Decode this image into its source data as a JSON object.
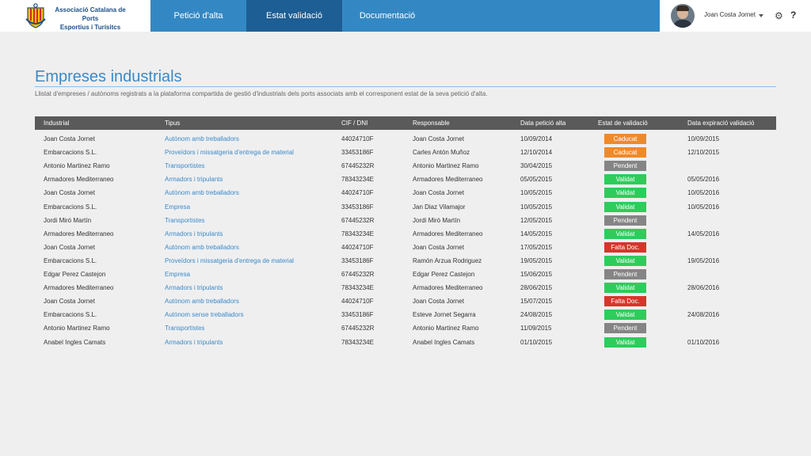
{
  "logo": {
    "line1": "Associació Catalana de Ports",
    "line2": "Esportius i Turísitcs"
  },
  "nav": {
    "tabs": [
      {
        "label": "Petició d'alta"
      },
      {
        "label": "Estat validació"
      },
      {
        "label": "Documentació"
      }
    ]
  },
  "user": {
    "name": "Joan Costa Jornet",
    "settings_icon": "gear-icon",
    "help_label": "?"
  },
  "page": {
    "title": "Empreses industrials",
    "subtitle": "Llistat d'empreses / autònoms registrats a la plataforma compartida de gestió d'industrials dels ports associats amb el corresponent estat de la seva petició d'alta."
  },
  "table": {
    "headers": {
      "industrial": "Industrial",
      "tipus": "Tipus",
      "cif": "CIF / DNI",
      "responsable": "Responsable",
      "data_peticio": "Data petició alta",
      "estat": "Estat de validació",
      "data_exp": "Data expiració validació"
    },
    "status_colors": {
      "Caducat": "#ee8a2b",
      "Pendent": "#858585",
      "Validat": "#2ecc5b",
      "Falta Doc.": "#d9342b"
    },
    "rows": [
      {
        "industrial": "Joan Costa Jornet",
        "tipus": "Autònom amb treballadors",
        "cif": "44024710F",
        "responsable": "Joan Costa Jornet",
        "data_peticio": "10/09/2014",
        "estat": "Caducat",
        "data_exp": "10/09/2015"
      },
      {
        "industrial": "Embarcacions S.L.",
        "tipus": "Proveïdors i missatgeria d'entrega de material",
        "cif": "33453186F",
        "responsable": "Carles Antón Muñoz",
        "data_peticio": "12/10/2014",
        "estat": "Caducat",
        "data_exp": "12/10/2015"
      },
      {
        "industrial": "Antonio Martinez Ramo",
        "tipus": "Transportistes",
        "cif": "67445232R",
        "responsable": "Antonio Martinez Ramo",
        "data_peticio": "30/04/2015",
        "estat": "Pendent",
        "data_exp": ""
      },
      {
        "industrial": "Armadores Mediterraneo",
        "tipus": "Armadors i tripulants",
        "cif": "78343234E",
        "responsable": "Armadores Mediterraneo",
        "data_peticio": "05/05/2015",
        "estat": "Validat",
        "data_exp": "05/05/2016"
      },
      {
        "industrial": "Joan Costa Jornet",
        "tipus": "Autònom amb treballadors",
        "cif": "44024710F",
        "responsable": "Joan Costa Jornet",
        "data_peticio": "10/05/2015",
        "estat": "Validat",
        "data_exp": "10/05/2016"
      },
      {
        "industrial": "Embarcacions S.L.",
        "tipus": "Empresa",
        "cif": "33453186F",
        "responsable": "Jan Diaz Vilamajor",
        "data_peticio": "10/05/2015",
        "estat": "Validat",
        "data_exp": "10/05/2016"
      },
      {
        "industrial": "Jordi Miró Martín",
        "tipus": "Transportistes",
        "cif": "67445232R",
        "responsable": "Jordi Miró Martín",
        "data_peticio": "12/05/2015",
        "estat": "Pendent",
        "data_exp": ""
      },
      {
        "industrial": "Armadores Mediterraneo",
        "tipus": "Armadors i tripulants",
        "cif": "78343234E",
        "responsable": "Armadores Mediterraneo",
        "data_peticio": "14/05/2015",
        "estat": "Validat",
        "data_exp": "14/05/2016"
      },
      {
        "industrial": "Joan Costa Jornet",
        "tipus": "Autònom amb treballadors",
        "cif": "44024710F",
        "responsable": "Joan Costa Jornet",
        "data_peticio": "17/05/2015",
        "estat": "Falta Doc.",
        "data_exp": ""
      },
      {
        "industrial": "Embarcacions S.L.",
        "tipus": "Proveïdors i missatgeria d'entrega de material",
        "cif": "33453186F",
        "responsable": "Ramón Arzua Rodriguez",
        "data_peticio": "19/05/2015",
        "estat": "Validat",
        "data_exp": "19/05/2016"
      },
      {
        "industrial": "Edgar Perez Castejon",
        "tipus": "Empresa",
        "cif": "67445232R",
        "responsable": "Edgar Perez Castejon",
        "data_peticio": "15/06/2015",
        "estat": "Pendent",
        "data_exp": ""
      },
      {
        "industrial": "Armadores Mediterraneo",
        "tipus": "Armadors i tripulants",
        "cif": "78343234E",
        "responsable": "Armadores Mediterraneo",
        "data_peticio": "28/06/2015",
        "estat": "Validat",
        "data_exp": "28/06/2016"
      },
      {
        "industrial": "Joan Costa Jornet",
        "tipus": "Autònom amb treballadors",
        "cif": "44024710F",
        "responsable": "Joan Costa Jornet",
        "data_peticio": "15/07/2015",
        "estat": "Falta Doc.",
        "data_exp": ""
      },
      {
        "industrial": "Embarcacions S.L.",
        "tipus": "Autònom sense treballadors",
        "cif": "33453186F",
        "responsable": "Esteve Jornet Segarra",
        "data_peticio": "24/08/2015",
        "estat": "Validat",
        "data_exp": "24/08/2016"
      },
      {
        "industrial": "Antonio Martinez Ramo",
        "tipus": "Transportistes",
        "cif": "67445232R",
        "responsable": "Antonio Martinez Ramo",
        "data_peticio": "11/09/2015",
        "estat": "Pendent",
        "data_exp": ""
      },
      {
        "industrial": "Anabel Ingles Camats",
        "tipus": "Armadors i tripulants",
        "cif": "78343234E",
        "responsable": "Anabel Ingles Camats",
        "data_peticio": "01/10/2015",
        "estat": "Validat",
        "data_exp": "01/10/2016"
      }
    ]
  }
}
